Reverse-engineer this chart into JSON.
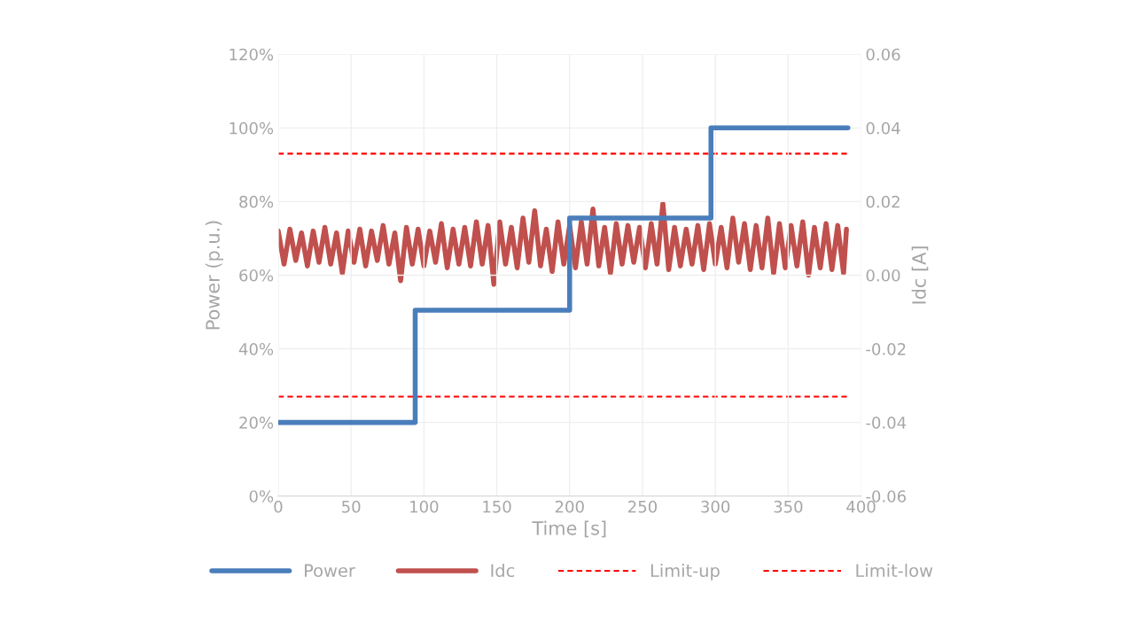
{
  "chart_data": {
    "type": "line",
    "xlabel": "Time [s]",
    "ylabel": "Power (p.u.)",
    "y2label": "Idc [A]",
    "xlim": [
      0,
      400
    ],
    "xticks": [
      0,
      50,
      100,
      150,
      200,
      250,
      300,
      350,
      400
    ],
    "ylim": [
      0,
      120
    ],
    "yticks": [
      {
        "value": 0,
        "label": "0%"
      },
      {
        "value": 20,
        "label": "20%"
      },
      {
        "value": 40,
        "label": "40%"
      },
      {
        "value": 60,
        "label": "60%"
      },
      {
        "value": 80,
        "label": "80%"
      },
      {
        "value": 100,
        "label": "100%"
      },
      {
        "value": 120,
        "label": "120%"
      }
    ],
    "y2lim": [
      -0.06,
      0.06
    ],
    "y2ticks": [
      {
        "value": -0.06,
        "label": "-0.06"
      },
      {
        "value": -0.04,
        "label": "-0.04"
      },
      {
        "value": -0.02,
        "label": "-0.02"
      },
      {
        "value": 0,
        "label": "0.00"
      },
      {
        "value": 0.02,
        "label": "0.02"
      },
      {
        "value": 0.04,
        "label": "0.04"
      },
      {
        "value": 0.06,
        "label": "0.06"
      }
    ],
    "grid": true,
    "legend": "bottom",
    "marker": "none",
    "series": [
      {
        "name": "Power",
        "color": "#4a7ebb",
        "line_style": "solid",
        "x": [
          0,
          94,
          94,
          200,
          200,
          297,
          297,
          391
        ],
        "values": [
          20,
          20,
          50.5,
          50.5,
          75.5,
          75.5,
          100,
          100
        ]
      },
      {
        "name": "Idc",
        "color": "#c0504d",
        "axis": "y2",
        "line_style": "solid",
        "x": [
          0,
          4,
          8,
          12,
          16,
          20,
          24,
          28,
          32,
          36,
          40,
          44,
          48,
          52,
          56,
          60,
          64,
          68,
          72,
          76,
          80,
          84,
          88,
          92,
          96,
          100,
          104,
          108,
          112,
          116,
          120,
          124,
          128,
          132,
          136,
          140,
          144,
          148,
          152,
          156,
          160,
          164,
          168,
          172,
          176,
          180,
          184,
          188,
          192,
          196,
          200,
          204,
          208,
          212,
          216,
          220,
          224,
          228,
          232,
          236,
          240,
          244,
          248,
          252,
          256,
          260,
          264,
          268,
          272,
          276,
          280,
          284,
          288,
          292,
          296,
          300,
          304,
          308,
          312,
          316,
          320,
          324,
          328,
          332,
          336,
          340,
          344,
          348,
          352,
          356,
          360,
          364,
          368,
          372,
          376,
          380,
          384,
          388,
          390
        ],
        "values": [
          0.012,
          0.003,
          0.0125,
          0.004,
          0.0115,
          0.0025,
          0.012,
          0.0035,
          0.013,
          0.003,
          0.0115,
          0.0005,
          0.012,
          0.0035,
          0.0125,
          0.0025,
          0.012,
          0.004,
          0.0135,
          0.003,
          0.0115,
          -0.0015,
          0.013,
          0.003,
          0.0125,
          0.0025,
          0.012,
          0.0035,
          0.014,
          0.002,
          0.0125,
          0.003,
          0.013,
          0.0025,
          0.0145,
          0.003,
          0.0135,
          -0.0025,
          0.0145,
          0.003,
          0.013,
          0.002,
          0.0155,
          0.0035,
          0.0175,
          0.0025,
          0.0125,
          0.001,
          0.0145,
          0.003,
          0.0135,
          0.002,
          0.0145,
          0.003,
          0.018,
          0.0025,
          0.013,
          0.0005,
          0.014,
          0.003,
          0.0135,
          0.0035,
          0.013,
          0.002,
          0.014,
          0.003,
          0.0195,
          0.0015,
          0.013,
          0.0025,
          0.0125,
          0.003,
          0.0135,
          0.0015,
          0.014,
          0.003,
          0.013,
          0.002,
          0.0155,
          0.0035,
          0.014,
          0.0015,
          0.0135,
          0.002,
          0.0155,
          0.0005,
          0.014,
          0.002,
          0.0135,
          0.0025,
          0.0145,
          0.0,
          0.013,
          0.002,
          0.014,
          0.0015,
          0.0135,
          0.0005,
          0.0125
        ]
      },
      {
        "name": "Limit-up",
        "color": "#ff0000",
        "axis": "y2",
        "line_style": "dashed",
        "x": [
          0,
          391
        ],
        "values": [
          0.033,
          0.033
        ]
      },
      {
        "name": "Limit-low",
        "color": "#ff0000",
        "axis": "y2",
        "line_style": "dashed",
        "x": [
          0,
          391
        ],
        "values": [
          -0.033,
          -0.033
        ]
      }
    ]
  }
}
